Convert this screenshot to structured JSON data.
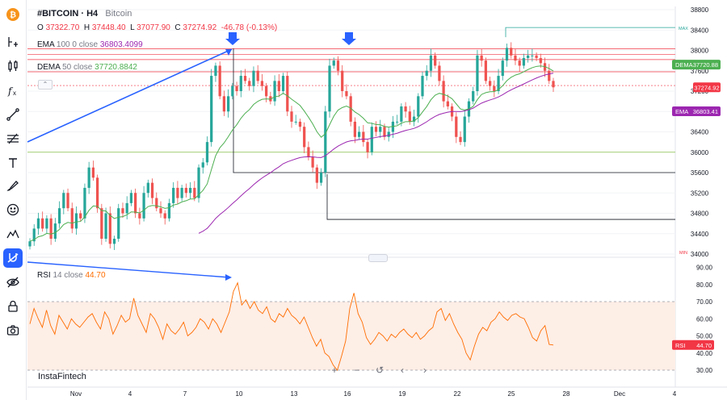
{
  "symbol": {
    "name": "#BITCOIN · H4",
    "description": "Bitcoin"
  },
  "ohlc": {
    "o_label": "O",
    "o": "37322.70",
    "h_label": "H",
    "h": "37448.40",
    "l_label": "L",
    "l": "37077.90",
    "c_label": "C",
    "c": "37274.92",
    "change": "-46.78 (-0.13%)"
  },
  "ema": {
    "name": "EMA",
    "params": "100 0 close",
    "value": "36803.4099",
    "badge_label": "EMA",
    "badge_value": "36803.41"
  },
  "dema": {
    "name": "DEMA",
    "params": "50 close",
    "value": "37720.8842",
    "badge_label": "DEMA",
    "badge_value": "37720.88"
  },
  "price_badge": "37274.92",
  "rsi": {
    "name": "RSI",
    "params": "14 close",
    "value": "44.70",
    "badge_label": "RSI",
    "badge_value": "44.70"
  },
  "max_label": "MAX",
  "min_label": "MIN",
  "watermark": "InstaFintech",
  "collapse_icon": "chevron-up-icon",
  "colors": {
    "up": "#26a69a",
    "down": "#ef5350",
    "ema": "#9c27b0",
    "dema": "#4caf50",
    "rsi": "#ff6d00",
    "accent": "#2962ff",
    "resistance": "#f23645"
  },
  "toolbar": [
    "logo-icon",
    "timeframe-icon",
    "candles-icon",
    "indicators-icon",
    "trend-line-icon",
    "fib-icon",
    "text-icon",
    "brush-icon",
    "emoji-icon",
    "patterns-icon",
    "magnet-icon",
    "hide-icon",
    "lock-icon",
    "camera-icon"
  ],
  "navigation": [
    "plus-icon",
    "minus-icon",
    "reset-icon",
    "scroll-left-icon",
    "scroll-right-icon"
  ],
  "chart_data": {
    "type": "candlestick",
    "timeframe": "H4",
    "price_axis": {
      "ticks": [
        38800,
        38400,
        38000,
        37600,
        37200,
        36800,
        36400,
        36000,
        35600,
        35200,
        34800,
        34400,
        34000
      ],
      "ylim": [
        34000,
        38850
      ]
    },
    "time_axis": {
      "ticks": [
        "Nov",
        "4",
        "7",
        "10",
        "13",
        "16",
        "19",
        "22",
        "25",
        "28",
        "Dec",
        "4"
      ]
    },
    "levels": {
      "max": 38450,
      "resistance": [
        38030,
        37920,
        37820,
        37580,
        37310
      ],
      "support_green": 36000,
      "support": [
        35600,
        34680
      ]
    },
    "ohlc_series": {
      "opens": [
        34150,
        34250,
        34500,
        34700,
        34500,
        34700,
        34300,
        34600,
        34900,
        35200,
        34900,
        34500,
        34800,
        34700,
        35300,
        35700,
        35500,
        34900,
        34300,
        34800,
        34200,
        34300,
        34900,
        34800,
        35000,
        35200,
        34800,
        34700,
        35200,
        35400,
        35100,
        34900,
        34800,
        34700,
        35000,
        35300,
        35100,
        35300,
        35200,
        35300,
        35100,
        35700,
        35800,
        36200,
        37500,
        37700,
        37100,
        36800,
        37100,
        37300,
        37200,
        37500,
        37400,
        37300,
        37600,
        37400,
        37300,
        37100,
        37000,
        37400,
        37200,
        37500,
        36800,
        36600,
        36600,
        36500,
        36100,
        35900,
        35700,
        35400,
        35600,
        36800,
        37700,
        37800,
        37600,
        37200,
        37100,
        36600,
        36300,
        36400,
        36200,
        36000,
        36500,
        36400,
        36500,
        36300,
        36400,
        36600,
        36600,
        36900,
        36800,
        36600,
        36700,
        37100,
        37500,
        37600,
        37900,
        37700,
        37400,
        37000,
        36900,
        36700,
        36300,
        36200,
        36700,
        37000,
        37200,
        37900,
        37800,
        37400,
        37300,
        37200,
        37500,
        37800,
        38050,
        37900,
        37800,
        37700,
        37850,
        37900,
        37900,
        37850,
        37750,
        37600,
        37400
      ],
      "closes": [
        34250,
        34500,
        34700,
        34500,
        34700,
        34300,
        34600,
        34900,
        35200,
        34900,
        34500,
        34800,
        34700,
        35300,
        35700,
        35500,
        34900,
        34300,
        34800,
        34200,
        34300,
        34900,
        34800,
        35000,
        35200,
        34800,
        34700,
        35200,
        35400,
        35100,
        34900,
        34800,
        34700,
        35000,
        35300,
        35100,
        35300,
        35200,
        35300,
        35100,
        35700,
        35800,
        36200,
        37500,
        37700,
        37100,
        36800,
        37100,
        37300,
        37200,
        37500,
        37400,
        37300,
        37600,
        37400,
        37300,
        37100,
        37000,
        37400,
        37200,
        37500,
        36800,
        36600,
        36600,
        36500,
        36100,
        35900,
        35700,
        35400,
        35600,
        36800,
        37700,
        37800,
        37600,
        37200,
        37100,
        36600,
        36300,
        36400,
        36200,
        36000,
        36500,
        36400,
        36500,
        36300,
        36400,
        36600,
        36600,
        36900,
        36800,
        36600,
        36700,
        37100,
        37500,
        37600,
        37900,
        37700,
        37400,
        37000,
        36900,
        36700,
        36300,
        36200,
        36700,
        37000,
        37200,
        37900,
        37800,
        37400,
        37300,
        37200,
        37500,
        37800,
        38050,
        37900,
        37800,
        37700,
        37850,
        37900,
        37900,
        37850,
        37750,
        37600,
        37400,
        37275
      ]
    },
    "ema_label": "EMA 100 0 close",
    "dema_label": "DEMA 50 close",
    "rsi_axis": {
      "ticks": [
        90,
        80,
        70,
        60,
        50,
        40,
        30
      ],
      "ylim": [
        27,
        92
      ],
      "overbought": 70,
      "oversold": 30
    },
    "rsi_values": [
      57,
      66,
      60,
      55,
      65,
      56,
      51,
      62,
      58,
      54,
      60,
      57,
      55,
      58,
      61,
      63,
      58,
      54,
      64,
      60,
      51,
      56,
      62,
      58,
      60,
      72,
      62,
      57,
      52,
      63,
      60,
      55,
      48,
      57,
      53,
      51,
      54,
      58,
      50,
      52,
      55,
      60,
      58,
      54,
      60,
      57,
      52,
      58,
      64,
      76,
      81,
      68,
      71,
      66,
      70,
      65,
      63,
      67,
      60,
      58,
      63,
      61,
      66,
      62,
      60,
      57,
      61,
      55,
      49,
      44,
      48,
      40,
      38,
      33,
      30,
      38,
      47,
      66,
      75,
      63,
      58,
      49,
      45,
      48,
      52,
      50,
      47,
      51,
      49,
      52,
      54,
      51,
      49,
      52,
      48,
      50,
      53,
      55,
      64,
      66,
      59,
      63,
      57,
      52,
      48,
      40,
      36,
      44,
      51,
      55,
      53,
      58,
      60,
      64,
      61,
      59,
      62,
      63,
      61,
      60,
      55,
      49,
      47,
      53,
      56,
      45,
      44.7
    ]
  }
}
